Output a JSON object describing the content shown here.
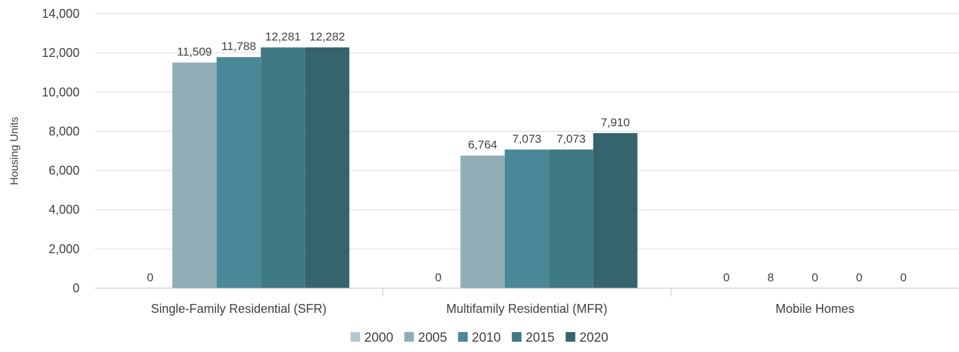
{
  "chart_data": {
    "type": "bar",
    "title": "",
    "xlabel": "",
    "ylabel": "Housing Units",
    "ylim": [
      0,
      14000
    ],
    "ytick_labels": [
      "0",
      "2,000",
      "4,000",
      "6,000",
      "8,000",
      "10,000",
      "12,000",
      "14,000"
    ],
    "yticks": [
      0,
      2000,
      4000,
      6000,
      8000,
      10000,
      12000,
      14000
    ],
    "categories": [
      "Single-Family Residential (SFR)",
      "Multifamily Residential (MFR)",
      "Mobile Homes"
    ],
    "series": [
      {
        "name": "2000",
        "color": "#b6c7cd",
        "values": [
          0,
          0,
          0
        ],
        "labels": [
          "0",
          "0",
          "0"
        ]
      },
      {
        "name": "2005",
        "color": "#91adb6",
        "values": [
          11509,
          6764,
          8
        ],
        "labels": [
          "11,509",
          "6,764",
          "8"
        ]
      },
      {
        "name": "2010",
        "color": "#498899",
        "values": [
          11788,
          7073,
          0
        ],
        "labels": [
          "11,788",
          "7,073",
          "0"
        ]
      },
      {
        "name": "2015",
        "color": "#3f7983",
        "values": [
          12281,
          7073,
          0
        ],
        "labels": [
          "12,281",
          "7,073",
          "0"
        ]
      },
      {
        "name": "2020",
        "color": "#35646e",
        "values": [
          12282,
          7910,
          0
        ],
        "labels": [
          "12,282",
          "7,910",
          "0"
        ]
      }
    ],
    "grid": true,
    "legend_position": "bottom"
  }
}
